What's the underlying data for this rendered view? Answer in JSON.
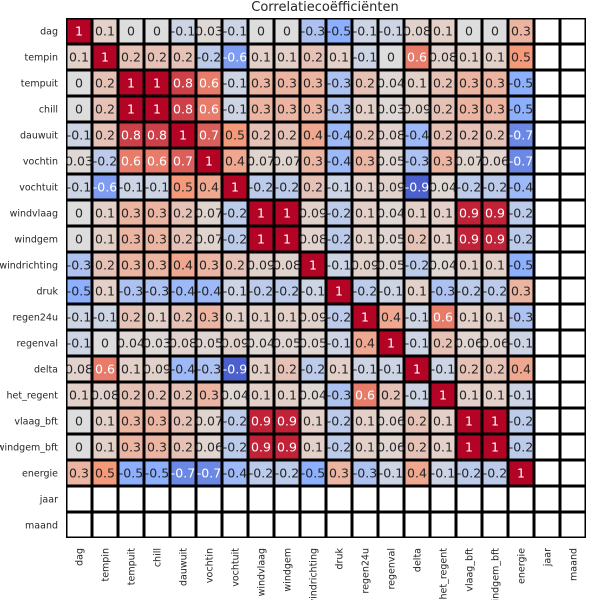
{
  "chart_data": {
    "type": "heatmap",
    "title": "Correlatiecoëfficiënten",
    "variables": [
      "dag",
      "tempin",
      "tempuit",
      "chill",
      "dauwuit",
      "vochtin",
      "vochtuit",
      "windvlaag",
      "windgem",
      "windrichting",
      "druk",
      "regen24u",
      "regenval",
      "delta",
      "het_regent",
      "vlaag_bft",
      "windgem_bft",
      "energie",
      "jaar",
      "maand"
    ],
    "value_range": [
      -1,
      1
    ],
    "colormap": "coolwarm",
    "grid": true,
    "empty_variables": [
      "jaar",
      "maand"
    ],
    "matrix": [
      [
        1,
        0.1,
        0.0,
        0.0,
        -0.1,
        0.03,
        -0.1,
        0.0,
        0.0,
        -0.3,
        -0.5,
        -0.1,
        -0.1,
        0.08,
        0.1,
        0.0,
        0.0,
        0.3
      ],
      [
        0.1,
        1,
        0.2,
        0.2,
        0.2,
        -0.2,
        -0.6,
        0.1,
        0.1,
        0.2,
        0.1,
        -0.1,
        0.0,
        0.6,
        0.08,
        0.1,
        0.1,
        0.5
      ],
      [
        0.0,
        0.2,
        1,
        1,
        0.8,
        0.6,
        -0.1,
        0.3,
        0.3,
        0.3,
        -0.3,
        0.2,
        0.04,
        0.1,
        0.2,
        0.3,
        0.3,
        -0.5
      ],
      [
        0.0,
        0.2,
        1,
        1,
        0.8,
        0.6,
        -0.1,
        0.3,
        0.3,
        0.3,
        -0.3,
        0.1,
        0.03,
        0.09,
        0.2,
        0.3,
        0.3,
        -0.5
      ],
      [
        -0.1,
        0.2,
        0.8,
        0.8,
        1,
        0.7,
        0.5,
        0.2,
        0.2,
        0.4,
        -0.4,
        0.2,
        0.08,
        -0.4,
        0.2,
        0.2,
        0.2,
        -0.7
      ],
      [
        0.03,
        -0.2,
        0.6,
        0.6,
        0.7,
        1,
        0.4,
        0.07,
        0.07,
        0.3,
        -0.4,
        0.3,
        0.05,
        -0.3,
        0.3,
        0.07,
        0.06,
        -0.7
      ],
      [
        -0.1,
        -0.6,
        -0.1,
        -0.1,
        0.5,
        0.4,
        1,
        -0.2,
        -0.2,
        0.2,
        -0.1,
        0.1,
        0.09,
        -0.9,
        0.04,
        -0.2,
        -0.2,
        -0.4
      ],
      [
        0.0,
        0.1,
        0.3,
        0.3,
        0.2,
        0.07,
        -0.2,
        1,
        1,
        0.09,
        -0.2,
        0.1,
        0.04,
        0.1,
        0.1,
        0.9,
        0.9,
        -0.2
      ],
      [
        0.0,
        0.1,
        0.3,
        0.3,
        0.2,
        0.07,
        -0.2,
        1,
        1,
        0.08,
        -0.2,
        0.1,
        0.05,
        0.2,
        0.1,
        0.9,
        0.9,
        -0.2
      ],
      [
        -0.3,
        0.2,
        0.3,
        0.3,
        0.4,
        0.3,
        0.2,
        0.09,
        0.08,
        1,
        -0.1,
        0.09,
        0.05,
        -0.2,
        0.04,
        0.1,
        0.1,
        -0.5
      ],
      [
        -0.5,
        0.1,
        -0.3,
        -0.3,
        -0.4,
        -0.4,
        -0.1,
        -0.2,
        -0.2,
        -0.1,
        1,
        -0.2,
        -0.1,
        0.1,
        -0.3,
        -0.2,
        -0.2,
        0.3
      ],
      [
        -0.1,
        -0.1,
        0.2,
        0.1,
        0.2,
        0.3,
        0.1,
        0.1,
        0.1,
        0.09,
        -0.2,
        1,
        0.4,
        -0.1,
        0.6,
        0.1,
        0.1,
        -0.3
      ],
      [
        -0.1,
        0.0,
        0.04,
        0.03,
        0.08,
        0.05,
        0.09,
        0.04,
        0.05,
        0.05,
        -0.1,
        0.4,
        1,
        -0.1,
        0.2,
        0.06,
        0.06,
        -0.1
      ],
      [
        0.08,
        0.6,
        0.1,
        0.09,
        -0.4,
        -0.3,
        -0.9,
        0.1,
        0.2,
        -0.2,
        0.1,
        -0.1,
        -0.1,
        1,
        -0.1,
        0.2,
        0.2,
        0.4
      ],
      [
        0.1,
        0.08,
        0.2,
        0.2,
        0.2,
        0.3,
        0.04,
        0.1,
        0.1,
        0.04,
        -0.3,
        0.6,
        0.2,
        -0.1,
        1,
        0.1,
        0.1,
        -0.1
      ],
      [
        0.0,
        0.1,
        0.3,
        0.3,
        0.2,
        0.07,
        -0.2,
        0.9,
        0.9,
        0.1,
        -0.2,
        0.1,
        0.06,
        0.2,
        0.1,
        1,
        1,
        -0.2
      ],
      [
        0.0,
        0.1,
        0.3,
        0.3,
        0.2,
        0.06,
        -0.2,
        0.9,
        0.9,
        0.1,
        -0.2,
        0.1,
        0.06,
        0.2,
        0.1,
        1,
        1,
        -0.2
      ],
      [
        0.3,
        0.5,
        -0.5,
        -0.5,
        -0.7,
        -0.7,
        -0.4,
        -0.2,
        -0.2,
        -0.5,
        0.3,
        -0.3,
        -0.1,
        0.4,
        -0.1,
        -0.2,
        -0.2,
        1
      ]
    ]
  }
}
